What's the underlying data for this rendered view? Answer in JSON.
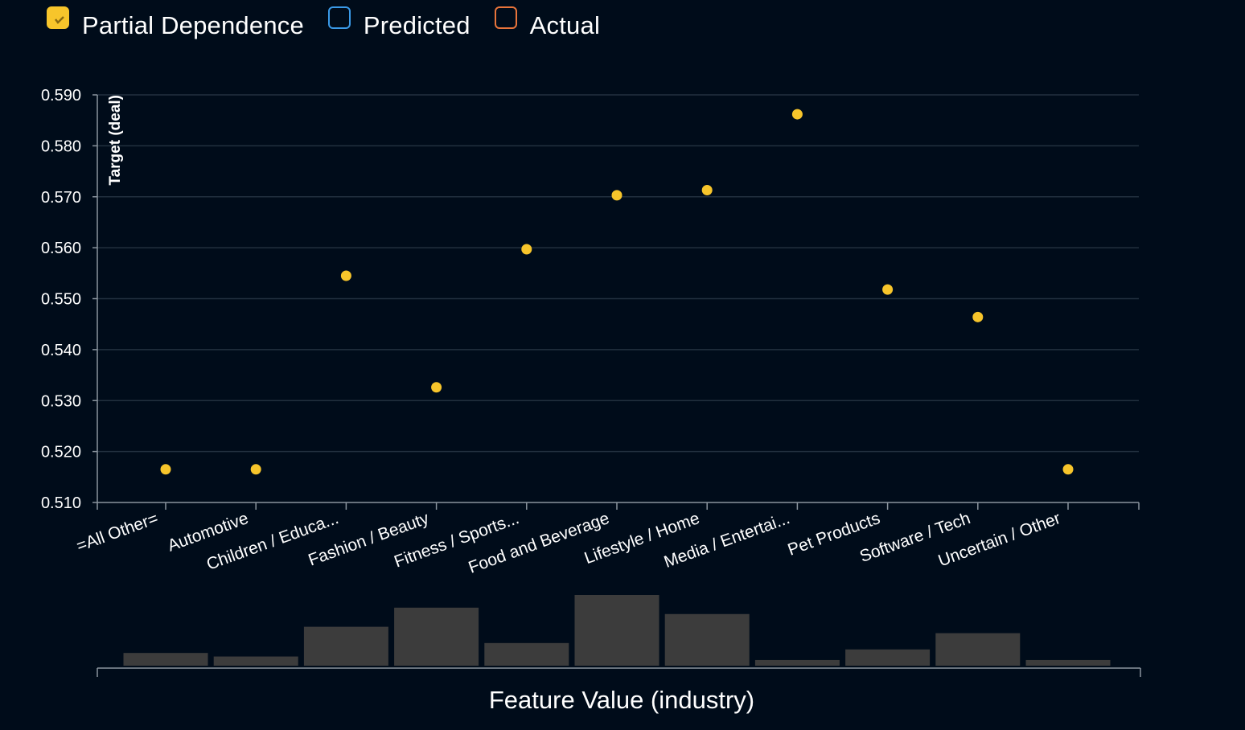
{
  "legend": {
    "items": [
      {
        "label": "Partial Dependence",
        "color": "#f7c52b",
        "checked": true
      },
      {
        "label": "Predicted",
        "color": "#3a9ae8",
        "checked": false
      },
      {
        "label": "Actual",
        "color": "#e8743b",
        "checked": false
      }
    ]
  },
  "colors": {
    "background": "#000c1a",
    "grid": "#22303f",
    "axis": "#8a949e",
    "point": "#f7c52b",
    "histogram": "#3c3c3c"
  },
  "chart_data": {
    "type": "scatter",
    "title": "",
    "ylabel": "Target (deal)",
    "xlabel": "Feature Value (industry)",
    "ylim": [
      0.51,
      0.59
    ],
    "yticks": [
      "0.510",
      "0.520",
      "0.530",
      "0.540",
      "0.550",
      "0.560",
      "0.570",
      "0.580",
      "0.590"
    ],
    "grid": true,
    "categories": [
      "=All Other=",
      "Automotive",
      "Children / Educa...",
      "Fashion / Beauty",
      "Fitness / Sports...",
      "Food and Beverage",
      "Lifestyle / Home",
      "Media / Entertai...",
      "Pet Products",
      "Software / Tech",
      "Uncertain / Other"
    ],
    "series": [
      {
        "name": "Partial Dependence",
        "values": [
          0.5165,
          0.5165,
          0.5545,
          0.5326,
          0.5597,
          0.5703,
          0.5713,
          0.5862,
          0.5518,
          0.5464,
          0.5165
        ]
      }
    ],
    "histogram": {
      "values": [
        0.18,
        0.13,
        0.55,
        0.82,
        0.32,
        1.0,
        0.73,
        0.08,
        0.23,
        0.46,
        0.08
      ]
    }
  }
}
